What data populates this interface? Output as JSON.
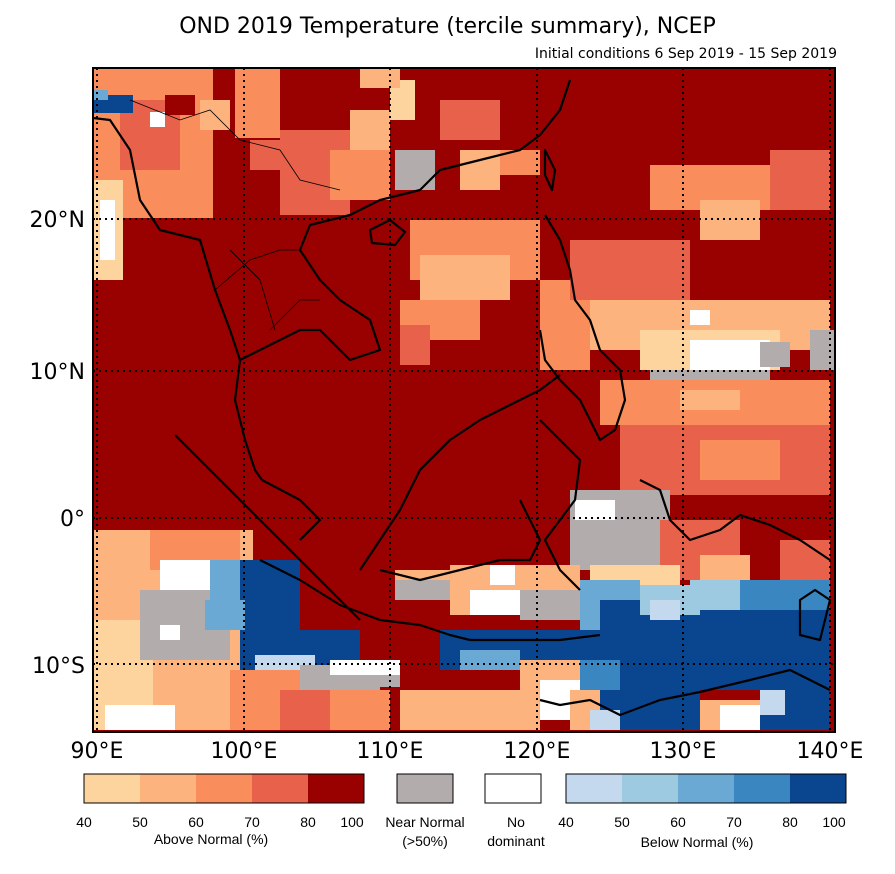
{
  "title": "OND 2019 Temperature (tercile summary), NCEP",
  "subtitle": "Initial conditions 6 Sep 2019 - 15 Sep 2019",
  "map": {
    "lon_labels": [
      "90°E",
      "100°E",
      "110°E",
      "120°E",
      "130°E",
      "140°E"
    ],
    "lat_labels": [
      "20°N",
      "10°N",
      "0°",
      "10°S"
    ],
    "lon_range": [
      90,
      140
    ],
    "lat_range": [
      -14.5,
      29.5
    ]
  },
  "legend": {
    "above": {
      "title": "Above Normal (%)",
      "ticks": [
        "40",
        "50",
        "60",
        "70",
        "80",
        "100"
      ],
      "colors": [
        "#fdd49e",
        "#fdb37d",
        "#f98d5b",
        "#e8614a",
        "#990000"
      ]
    },
    "near": {
      "line1": "Near Normal",
      "line2": "(>50%)",
      "color": "#b3acac"
    },
    "none": {
      "line1": "No",
      "line2": "dominant",
      "color": "#ffffff"
    },
    "below": {
      "title": "Below Normal (%)",
      "ticks": [
        "40",
        "50",
        "60",
        "70",
        "80",
        "100"
      ],
      "colors": [
        "#c5d9ee",
        "#9ecae1",
        "#6aa9d4",
        "#3a86c0",
        "#0a4590"
      ]
    }
  }
}
